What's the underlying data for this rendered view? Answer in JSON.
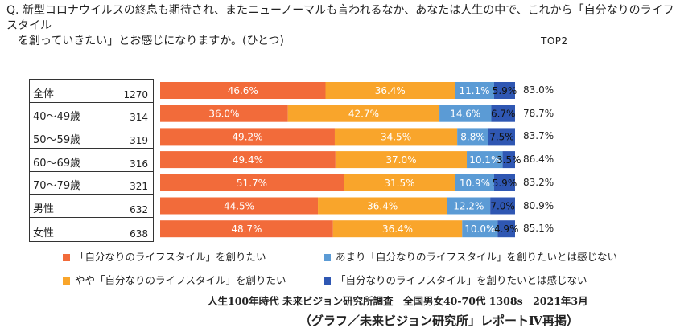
{
  "question": {
    "line1": "Q. 新型コロナウイルスの終息も期待され、またニューノーマルも言われるなか、あなたは人生の中で、これから「自分なりのライフスタイル",
    "line2": "を創っていきたい」とお感じになりますか。(ひとつ)"
  },
  "top2_header": "TOP2",
  "colors": {
    "series1": "#F26B3A",
    "series2": "#F9A52B",
    "series3": "#5B9BD5",
    "series4": "#2F57B3"
  },
  "chart_data": {
    "type": "bar",
    "orientation": "horizontal",
    "stacked": "100%",
    "categories": [
      "全体",
      "40～49歳",
      "50～59歳",
      "60～69歳",
      "70～79歳",
      "男性",
      "女性"
    ],
    "n": [
      "1270",
      "314",
      "319",
      "316",
      "321",
      "632",
      "638"
    ],
    "series": [
      {
        "name": "「自分なりのライフスタイル」を創りたい",
        "values": [
          46.6,
          36.0,
          49.2,
          49.4,
          51.7,
          44.5,
          48.7
        ],
        "labels": [
          "46.6%",
          "36.0%",
          "49.2%",
          "49.4%",
          "51.7%",
          "44.5%",
          "48.7%"
        ]
      },
      {
        "name": "やや「自分なりのライフスタイル」を創りたい",
        "values": [
          36.4,
          42.7,
          34.5,
          37.0,
          31.5,
          36.4,
          36.4
        ],
        "labels": [
          "36.4%",
          "42.7%",
          "34.5%",
          "37.0%",
          "31.5%",
          "36.4%",
          "36.4%"
        ]
      },
      {
        "name": "あまり「自分なりのライフスタイル」を創りたいとは感じない",
        "values": [
          11.1,
          14.6,
          8.8,
          10.1,
          10.9,
          12.2,
          10.0
        ],
        "labels": [
          "11.1%",
          "14.6%",
          "8.8%",
          "10.1%",
          "10.9%",
          "12.2%",
          "10.0%"
        ]
      },
      {
        "name": "「自分なりのライフスタイル」を創りたいとは感じない",
        "values": [
          5.9,
          6.7,
          7.5,
          3.5,
          5.9,
          7.0,
          4.9
        ],
        "labels": [
          "5.9%",
          "6.7%",
          "7.5%",
          "3.5%",
          "5.9%",
          "7.0%",
          "4.9%"
        ]
      }
    ],
    "top2": [
      "83.0%",
      "78.7%",
      "83.7%",
      "86.4%",
      "83.2%",
      "80.9%",
      "85.1%"
    ]
  },
  "source_note": "人生100年時代 未来ビジョン研究所調査　全国男女40-70代 1308s　2021年3月",
  "credit": "（グラフ／未来ビジョン研究所」レポートⅣ再掲）"
}
